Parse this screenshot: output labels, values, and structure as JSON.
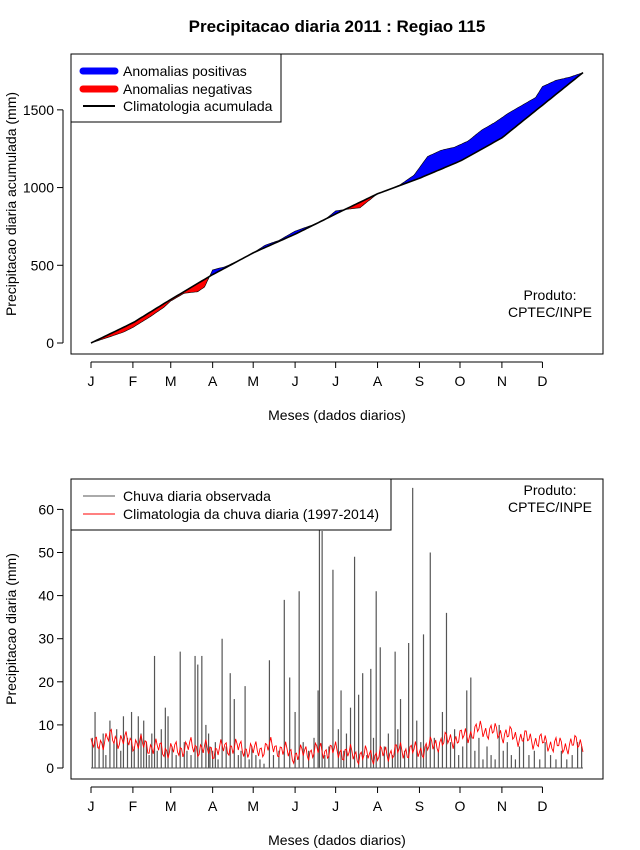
{
  "main_title": "Precipitacao diaria 2011 : Regiao 115",
  "chart_data": [
    {
      "type": "area",
      "title": "Precipitacao diaria 2011 : Regiao 115",
      "xlabel": "Meses (dados diarios)",
      "ylabel": "Precipitacao diaria acumulada (mm)",
      "xlim": [
        1,
        365
      ],
      "ylim": [
        0,
        1750
      ],
      "x_ticks": [
        {
          "day": 1,
          "label": "J"
        },
        {
          "day": 32,
          "label": "F"
        },
        {
          "day": 60,
          "label": "M"
        },
        {
          "day": 91,
          "label": "A"
        },
        {
          "day": 121,
          "label": "M"
        },
        {
          "day": 152,
          "label": "J"
        },
        {
          "day": 182,
          "label": "J"
        },
        {
          "day": 213,
          "label": "A"
        },
        {
          "day": 244,
          "label": "S"
        },
        {
          "day": 274,
          "label": "O"
        },
        {
          "day": 305,
          "label": "N"
        },
        {
          "day": 335,
          "label": "D"
        }
      ],
      "y_ticks": [
        0,
        500,
        1000,
        1500
      ],
      "legend": {
        "position": "top-left",
        "entries": [
          {
            "label": "Anomalias positivas",
            "color": "#0000ff"
          },
          {
            "label": "Anomalias negativas",
            "color": "#ff0000"
          },
          {
            "label": "Climatologia acumulada",
            "color": "#000000"
          }
        ]
      },
      "annotation": [
        "Produto:",
        "CPTEC/INPE"
      ],
      "climatology_cumulative": {
        "days": [
          1,
          32,
          60,
          91,
          121,
          152,
          182,
          213,
          244,
          274,
          305,
          335,
          365
        ],
        "values": [
          0,
          130,
          280,
          440,
          580,
          700,
          830,
          960,
          1060,
          1170,
          1320,
          1530,
          1740
        ]
      },
      "observed_cumulative": {
        "days": [
          1,
          15,
          25,
          32,
          45,
          55,
          60,
          70,
          80,
          85,
          91,
          95,
          100,
          110,
          121,
          130,
          140,
          152,
          165,
          175,
          182,
          190,
          200,
          210,
          213,
          220,
          230,
          240,
          250,
          260,
          270,
          280,
          290,
          300,
          310,
          320,
          330,
          335,
          345,
          355,
          365
        ],
        "values": [
          0,
          40,
          70,
          100,
          170,
          230,
          270,
          320,
          330,
          360,
          470,
          480,
          490,
          530,
          580,
          630,
          660,
          720,
          760,
          800,
          850,
          860,
          870,
          940,
          960,
          980,
          1020,
          1080,
          1200,
          1240,
          1260,
          1300,
          1370,
          1420,
          1480,
          1530,
          1580,
          1650,
          1690,
          1710,
          1740
        ]
      },
      "series": [
        {
          "name": "Anomalias positivas",
          "color": "#0000ff"
        },
        {
          "name": "Anomalias negativas",
          "color": "#ff0000"
        },
        {
          "name": "Climatologia acumulada",
          "color": "#000000"
        }
      ]
    },
    {
      "type": "bar",
      "title": "",
      "xlabel": "Meses (dados diarios)",
      "ylabel": "Precipitacao diaria (mm)",
      "xlim": [
        1,
        365
      ],
      "ylim": [
        0,
        65
      ],
      "x_ticks": [
        {
          "day": 1,
          "label": "J"
        },
        {
          "day": 32,
          "label": "F"
        },
        {
          "day": 60,
          "label": "M"
        },
        {
          "day": 91,
          "label": "A"
        },
        {
          "day": 121,
          "label": "M"
        },
        {
          "day": 152,
          "label": "J"
        },
        {
          "day": 182,
          "label": "J"
        },
        {
          "day": 213,
          "label": "A"
        },
        {
          "day": 244,
          "label": "S"
        },
        {
          "day": 274,
          "label": "O"
        },
        {
          "day": 305,
          "label": "N"
        },
        {
          "day": 335,
          "label": "D"
        }
      ],
      "y_ticks": [
        0,
        10,
        20,
        30,
        40,
        50,
        60
      ],
      "legend": {
        "position": "top-left",
        "entries": [
          {
            "label": "Chuva diaria observada",
            "color": "#555555"
          },
          {
            "label": "Climatologia da chuva diaria (1997-2014)",
            "color": "#ff0000"
          }
        ]
      },
      "annotation": [
        "Produto:",
        "CPTEC/INPE"
      ],
      "observed_daily": {
        "days": [
          2,
          4,
          7,
          10,
          12,
          15,
          18,
          20,
          23,
          25,
          28,
          31,
          33,
          36,
          38,
          40,
          42,
          44,
          46,
          48,
          50,
          53,
          56,
          58,
          61,
          64,
          67,
          70,
          72,
          75,
          78,
          80,
          83,
          86,
          88,
          89,
          91,
          93,
          95,
          98,
          101,
          104,
          107,
          110,
          112,
          115,
          118,
          120,
          123,
          126,
          129,
          133,
          136,
          140,
          144,
          148,
          152,
          155,
          158,
          162,
          166,
          169,
          170,
          172,
          174,
          177,
          180,
          184,
          186,
          188,
          190,
          193,
          196,
          199,
          202,
          205,
          208,
          210,
          212,
          215,
          218,
          221,
          224,
          226,
          228,
          230,
          233,
          236,
          239,
          242,
          245,
          247,
          249,
          252,
          255,
          258,
          261,
          264,
          267,
          270,
          273,
          276,
          279,
          282,
          285,
          288,
          291,
          294,
          297,
          300,
          303,
          306,
          309,
          312,
          315,
          318,
          321,
          325,
          329,
          333,
          337,
          341,
          345,
          349,
          353,
          357,
          361,
          364
        ],
        "values": [
          7,
          13,
          5,
          8,
          3,
          11,
          6,
          9,
          4,
          12,
          7,
          13,
          5,
          12,
          8,
          11,
          6,
          3,
          8,
          26,
          4,
          9,
          14,
          12,
          5,
          3,
          27,
          6,
          4,
          3,
          26,
          24,
          26,
          10,
          8,
          5,
          4,
          6,
          2,
          30,
          5,
          22,
          16,
          3,
          4,
          19,
          2,
          5,
          3,
          2,
          1,
          25,
          3,
          4,
          39,
          21,
          13,
          41,
          6,
          4,
          7,
          18,
          65,
          55,
          3,
          5,
          46,
          9,
          18,
          4,
          8,
          14,
          49,
          17,
          22,
          3,
          23,
          7,
          41,
          28,
          5,
          8,
          3,
          27,
          9,
          16,
          4,
          29,
          65,
          11,
          6,
          31,
          5,
          50,
          7,
          4,
          13,
          36,
          6,
          9,
          3,
          5,
          18,
          21,
          4,
          7,
          2,
          5,
          3,
          2,
          10,
          4,
          6,
          3,
          2,
          5,
          7,
          3,
          4,
          2,
          6,
          3,
          2,
          4,
          2,
          3,
          6,
          5
        ],
        "color": "#555555"
      },
      "climatology_daily": {
        "days": [
          1,
          15,
          32,
          45,
          60,
          75,
          91,
          105,
          121,
          135,
          152,
          165,
          182,
          197,
          213,
          228,
          244,
          259,
          274,
          289,
          305,
          320,
          335,
          350,
          365
        ],
        "values": [
          5,
          7,
          6,
          5,
          4,
          5,
          4,
          5,
          4,
          5,
          3,
          4,
          4,
          3,
          3,
          4,
          4,
          6,
          7,
          9,
          8,
          7,
          6,
          5,
          6
        ],
        "color": "#ff0000"
      }
    }
  ]
}
